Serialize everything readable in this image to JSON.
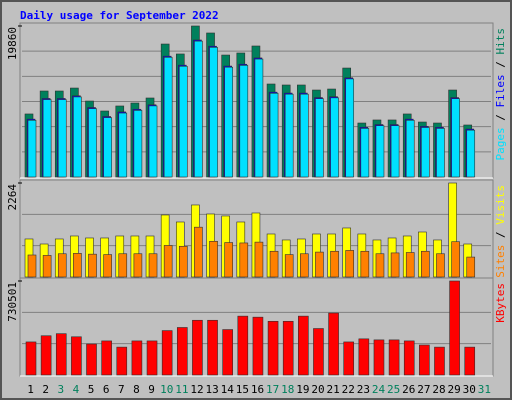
{
  "chart_data": [
    {
      "type": "bar",
      "title": "Daily usage for September 2022",
      "ylim": [
        0,
        19860
      ],
      "yticks": [
        19860
      ],
      "series": [
        {
          "name": "Hits",
          "color": "#00805c",
          "values": [
            8290,
            11310,
            11310,
            11700,
            9990,
            8680,
            9340,
            9730,
            10390,
            17490,
            16180,
            19860,
            18940,
            16040,
            16310,
            17230,
            12230,
            12100,
            12100,
            11440,
            11570,
            14330,
            7100,
            7500,
            7500,
            8290,
            7230,
            7100,
            11440,
            6840,
            null
          ]
        },
        {
          "name": "Files",
          "color": "#0000ff",
          "values": [
            7610,
            10330,
            10330,
            10680,
            9140,
            7960,
            8560,
            8910,
            9500,
            15890,
            14710,
            18020,
            17200,
            14590,
            14830,
            15660,
            11160,
            11040,
            11040,
            10450,
            10560,
            13050,
            6540,
            6900,
            6900,
            7610,
            6660,
            6540,
            10450,
            6310,
            null
          ]
        },
        {
          "name": "Pages",
          "color": "#00e0ff",
          "values": [
            7460,
            10180,
            10180,
            10530,
            8990,
            7810,
            8410,
            8760,
            9350,
            15740,
            14560,
            17870,
            17050,
            14440,
            14680,
            15510,
            11010,
            10890,
            10890,
            10300,
            10410,
            12900,
            6390,
            6750,
            6750,
            7460,
            6510,
            6390,
            10300,
            6160,
            null
          ]
        }
      ]
    },
    {
      "type": "bar",
      "ylim": [
        0,
        2264
      ],
      "yticks": [
        2264
      ],
      "series": [
        {
          "name": "Visits",
          "color": "#ffff00",
          "values": [
            916,
            795,
            916,
            988,
            940,
            940,
            988,
            988,
            988,
            1494,
            1325,
            1735,
            1518,
            1470,
            1325,
            1542,
            1036,
            892,
            916,
            1036,
            1036,
            1181,
            1036,
            892,
            940,
            988,
            1084,
            892,
            2264,
            795,
            null
          ]
        },
        {
          "name": "Sites",
          "color": "#ff8000",
          "values": [
            530,
            520,
            560,
            570,
            550,
            540,
            560,
            560,
            560,
            760,
            740,
            1200,
            860,
            830,
            820,
            840,
            620,
            540,
            560,
            600,
            620,
            640,
            620,
            560,
            580,
            590,
            620,
            560,
            850,
            480,
            null
          ]
        }
      ]
    },
    {
      "type": "bar",
      "ylim": [
        0,
        730501
      ],
      "yticks": [
        730501
      ],
      "categories": [
        "1",
        "2",
        "3",
        "4",
        "5",
        "6",
        "7",
        "8",
        "9",
        "10",
        "11",
        "12",
        "13",
        "14",
        "15",
        "16",
        "17",
        "18",
        "19",
        "20",
        "21",
        "22",
        "23",
        "24",
        "25",
        "26",
        "27",
        "28",
        "29",
        "30",
        "31"
      ],
      "category_colors": [
        "#000000",
        "#000000",
        "#00805c",
        "#00805c",
        "#000000",
        "#000000",
        "#000000",
        "#000000",
        "#000000",
        "#00805c",
        "#00805c",
        "#000000",
        "#000000",
        "#000000",
        "#000000",
        "#000000",
        "#00805c",
        "#00805c",
        "#000000",
        "#000000",
        "#000000",
        "#000000",
        "#000000",
        "#00805c",
        "#00805c",
        "#000000",
        "#000000",
        "#000000",
        "#000000",
        "#000000",
        "#00805c"
      ],
      "series": [
        {
          "name": "KBytes",
          "color": "#ff0000",
          "values": [
            256900,
            305000,
            321100,
            297000,
            240800,
            264900,
            216700,
            264900,
            264900,
            345200,
            369200,
            425400,
            425400,
            353200,
            457500,
            449500,
            417400,
            417400,
            457500,
            361200,
            481600,
            256900,
            280900,
            272900,
            272900,
            264900,
            232800,
            216700,
            730501,
            216700,
            null
          ]
        }
      ]
    }
  ]
}
